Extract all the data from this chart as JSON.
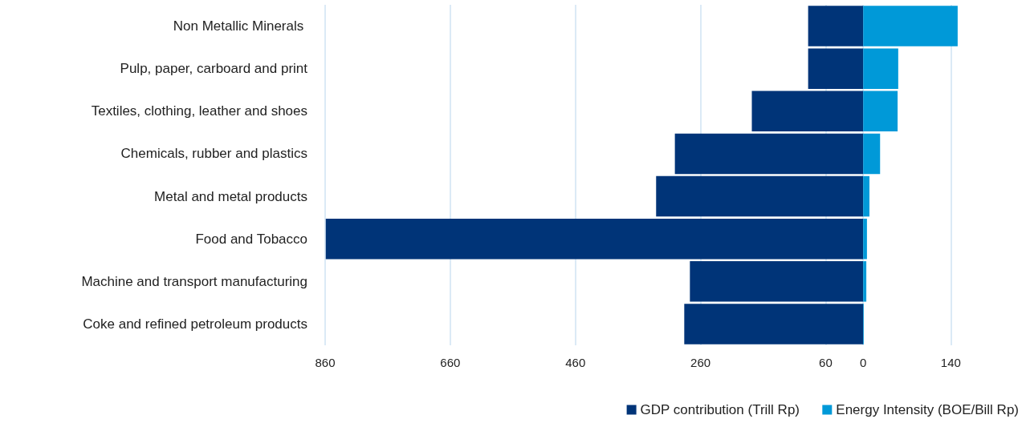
{
  "chart_data": {
    "type": "bar",
    "orientation": "horizontal",
    "stacked": true,
    "categories": [
      "Non Metallic Minerals ",
      "Pulp, paper, carboard and print",
      "Textiles, clothing, leather and shoes",
      "Chemicals, rubber and plastics",
      "Metal and metal products",
      "Food and Tobacco",
      "Machine and transport manufacturing",
      "Coke and refined petroleum products"
    ],
    "series": [
      {
        "name": "GDP contribution (Trill Rp)",
        "color": "#003478",
        "values": [
          -88,
          -88,
          -178,
          -301,
          -331,
          -859,
          -277,
          -286
        ]
      },
      {
        "name": "Energy Intensity (BOE/Bill Rp)",
        "color": "#0099d8",
        "values": [
          151,
          56,
          55,
          27,
          10,
          6,
          5,
          1
        ]
      }
    ],
    "xlim": [
      -860,
      155
    ],
    "xticks": [
      {
        "value": -860,
        "label": "860"
      },
      {
        "value": -660,
        "label": "660"
      },
      {
        "value": -460,
        "label": "460"
      },
      {
        "value": -260,
        "label": "260"
      },
      {
        "value": -60,
        "label": "60"
      },
      0,
      140
    ],
    "grid": "x",
    "legend": "bottom right"
  }
}
